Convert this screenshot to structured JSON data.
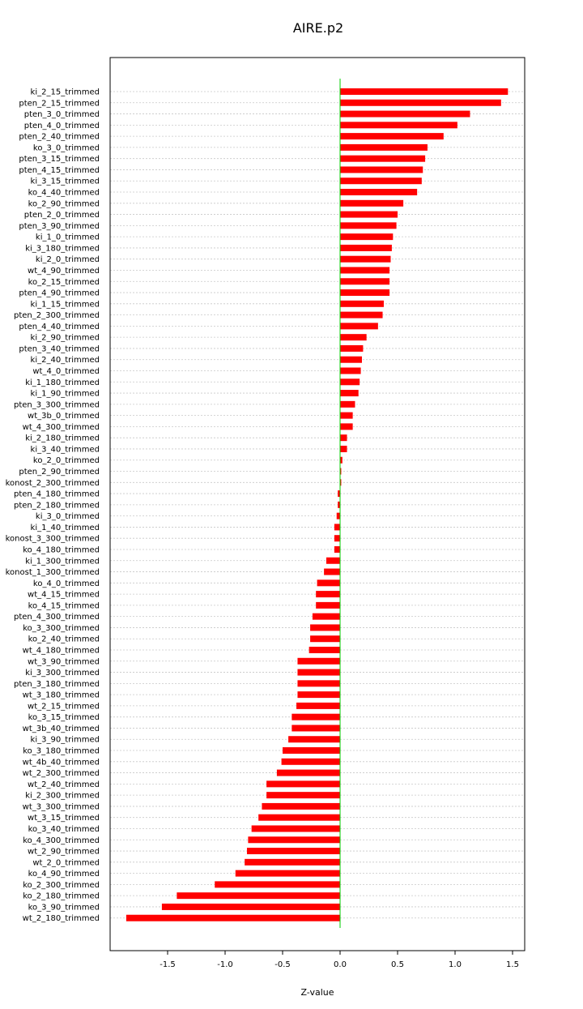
{
  "chart_data": {
    "type": "bar",
    "orientation": "horizontal",
    "title": "AIRE.p2",
    "xlabel": "Z-value",
    "xlim": [
      -2.0,
      1.6
    ],
    "xticks": [
      "-1.5",
      "-1.0",
      "-0.5",
      "0.0",
      "0.5",
      "1.0",
      "1.5"
    ],
    "grid": true,
    "bar_color": "#ff0000",
    "zero_line_color": "#00cc00",
    "categories": [
      "ki_2_15_trimmed",
      "pten_2_15_trimmed",
      "pten_3_0_trimmed",
      "pten_4_0_trimmed",
      "pten_2_40_trimmed",
      "ko_3_0_trimmed",
      "pten_3_15_trimmed",
      "pten_4_15_trimmed",
      "ki_3_15_trimmed",
      "ko_4_40_trimmed",
      "ko_2_90_trimmed",
      "pten_2_0_trimmed",
      "pten_3_90_trimmed",
      "ki_1_0_trimmed",
      "ki_3_180_trimmed",
      "ki_2_0_trimmed",
      "wt_4_90_trimmed",
      "ko_2_15_trimmed",
      "pten_4_90_trimmed",
      "ki_1_15_trimmed",
      "pten_2_300_trimmed",
      "pten_4_40_trimmed",
      "ki_2_90_trimmed",
      "pten_3_40_trimmed",
      "ki_2_40_trimmed",
      "wt_4_0_trimmed",
      "ki_1_180_trimmed",
      "ki_1_90_trimmed",
      "pten_3_300_trimmed",
      "wt_3b_0_trimmed",
      "wt_4_300_trimmed",
      "ki_2_180_trimmed",
      "ki_3_40_trimmed",
      "ko_2_0_trimmed",
      "pten_2_90_trimmed",
      "konost_2_300_trimmed",
      "pten_4_180_trimmed",
      "pten_2_180_trimmed",
      "ki_3_0_trimmed",
      "ki_1_40_trimmed",
      "konost_3_300_trimmed",
      "ko_4_180_trimmed",
      "ki_1_300_trimmed",
      "konost_1_300_trimmed",
      "ko_4_0_trimmed",
      "wt_4_15_trimmed",
      "ko_4_15_trimmed",
      "pten_4_300_trimmed",
      "ko_3_300_trimmed",
      "ko_2_40_trimmed",
      "wt_4_180_trimmed",
      "wt_3_90_trimmed",
      "ki_3_300_trimmed",
      "pten_3_180_trimmed",
      "wt_3_180_trimmed",
      "wt_2_15_trimmed",
      "ko_3_15_trimmed",
      "wt_3b_40_trimmed",
      "ki_3_90_trimmed",
      "ko_3_180_trimmed",
      "wt_4b_40_trimmed",
      "wt_2_300_trimmed",
      "wt_2_40_trimmed",
      "ki_2_300_trimmed",
      "wt_3_300_trimmed",
      "wt_3_15_trimmed",
      "ko_3_40_trimmed",
      "ko_4_300_trimmed",
      "wt_2_90_trimmed",
      "wt_2_0_trimmed",
      "ko_4_90_trimmed",
      "ko_2_300_trimmed",
      "ko_2_180_trimmed",
      "ko_3_90_trimmed",
      "wt_2_180_trimmed"
    ],
    "values": [
      1.46,
      1.4,
      1.13,
      1.02,
      0.9,
      0.76,
      0.74,
      0.72,
      0.71,
      0.67,
      0.55,
      0.5,
      0.49,
      0.46,
      0.45,
      0.44,
      0.43,
      0.43,
      0.43,
      0.38,
      0.37,
      0.33,
      0.23,
      0.2,
      0.19,
      0.18,
      0.17,
      0.16,
      0.13,
      0.11,
      0.11,
      0.06,
      0.06,
      0.02,
      0.01,
      0.01,
      -0.02,
      -0.02,
      -0.03,
      -0.05,
      -0.05,
      -0.05,
      -0.12,
      -0.14,
      -0.2,
      -0.21,
      -0.21,
      -0.24,
      -0.26,
      -0.26,
      -0.27,
      -0.37,
      -0.37,
      -0.37,
      -0.37,
      -0.38,
      -0.42,
      -0.42,
      -0.45,
      -0.5,
      -0.51,
      -0.55,
      -0.64,
      -0.64,
      -0.68,
      -0.71,
      -0.77,
      -0.8,
      -0.81,
      -0.83,
      -0.91,
      -1.09,
      -1.42,
      -1.55,
      -1.86
    ]
  }
}
